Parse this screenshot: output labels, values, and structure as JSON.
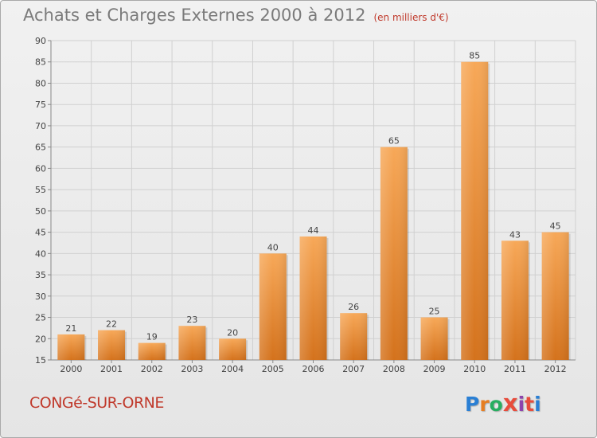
{
  "title": "Achats et Charges Externes 2000 à 2012",
  "unit_note": "(en milliers d'€)",
  "city": "CONGé-SUR-ORNE",
  "brand": {
    "letters": [
      "P",
      "r",
      "o",
      "x",
      "i",
      "t",
      "i"
    ],
    "colors": [
      "#2a7fd4",
      "#e67e22",
      "#27ae60",
      "#e74c3c",
      "#8e44ad",
      "#e74c3c",
      "#2a7fd4"
    ]
  },
  "colors": {
    "bar_light": "#f7a858",
    "bar_dark": "#d4721c",
    "text": "#444444",
    "grid": "#d0d0d0"
  },
  "chart_data": {
    "type": "bar",
    "categories": [
      "2000",
      "2001",
      "2002",
      "2003",
      "2004",
      "2005",
      "2006",
      "2007",
      "2008",
      "2009",
      "2010",
      "2011",
      "2012"
    ],
    "values": [
      21,
      22,
      19,
      23,
      20,
      40,
      44,
      26,
      65,
      25,
      85,
      43,
      45
    ],
    "ylim": [
      15,
      90
    ],
    "yticks": [
      15,
      20,
      25,
      30,
      35,
      40,
      45,
      50,
      55,
      60,
      65,
      70,
      75,
      80,
      85,
      90
    ],
    "grid": true,
    "xlabel": "",
    "ylabel": ""
  }
}
